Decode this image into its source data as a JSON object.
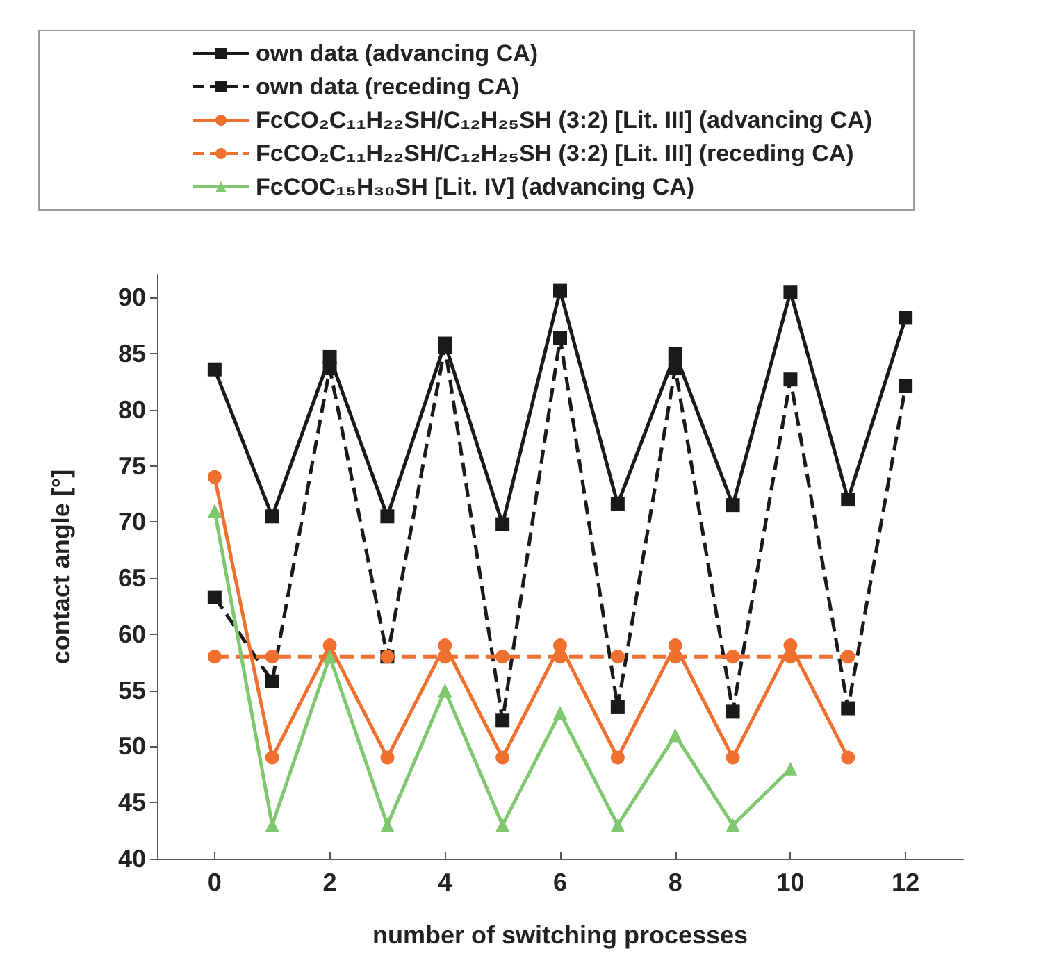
{
  "chart_data": {
    "type": "line",
    "xlabel": "number of switching processes",
    "ylabel": "contact angle [°]",
    "xlim": [
      -1,
      13
    ],
    "xticks": [
      0,
      2,
      4,
      6,
      8,
      10,
      12
    ],
    "ylim": [
      40,
      92
    ],
    "yticks": [
      40,
      45,
      50,
      55,
      60,
      65,
      70,
      75,
      80,
      85,
      90
    ],
    "grid": false,
    "legend": "top",
    "series": [
      {
        "name": "own data (advancing CA)",
        "color": "#1a1a1a",
        "marker": "square",
        "line_style": "solid",
        "x": [
          0,
          1,
          2,
          3,
          4,
          5,
          6,
          7,
          8,
          9,
          10,
          11,
          12
        ],
        "values": [
          83.6,
          70.5,
          84.7,
          70.5,
          85.9,
          69.8,
          90.6,
          71.6,
          85,
          71.5,
          90.5,
          72,
          88.2
        ]
      },
      {
        "name": "own data (receding CA)",
        "color": "#1a1a1a",
        "marker": "square",
        "line_style": "dashed",
        "x": [
          0,
          1,
          2,
          3,
          4,
          5,
          6,
          7,
          8,
          9,
          10,
          11,
          12
        ],
        "values": [
          63.3,
          55.8,
          83.7,
          58,
          85.6,
          52.3,
          86.4,
          53.5,
          83.7,
          53.1,
          82.7,
          53.4,
          82.1
        ]
      },
      {
        "name": "FcCO₂C₁₁H₂₂SH/C₁₂H₂₅SH (3:2) [Lit. III] (advancing CA)",
        "color": "#f07030",
        "marker": "circle",
        "line_style": "solid",
        "x": [
          0,
          1,
          2,
          3,
          4,
          5,
          6,
          7,
          8,
          9,
          10,
          11
        ],
        "values": [
          74,
          49,
          59,
          49,
          59,
          49,
          59,
          49,
          59,
          49,
          59,
          49
        ]
      },
      {
        "name": "FcCO₂C₁₁H₂₂SH/C₁₂H₂₅SH (3:2) [Lit. III] (receding CA)",
        "color": "#f07030",
        "marker": "circle",
        "line_style": "dashed",
        "x": [
          0,
          1,
          2,
          3,
          4,
          5,
          6,
          7,
          8,
          9,
          10,
          11
        ],
        "values": [
          58,
          58,
          58,
          58,
          58,
          58,
          58,
          58,
          58,
          58,
          58,
          58
        ]
      },
      {
        "name": "FcCOC₁₅H₃₀SH [Lit. IV] (advancing CA)",
        "color": "#80c870",
        "marker": "triangle",
        "line_style": "solid",
        "x": [
          0,
          1,
          2,
          3,
          4,
          5,
          6,
          7,
          8,
          9,
          10
        ],
        "values": [
          71,
          43,
          58,
          43,
          55,
          43,
          53,
          43,
          51,
          43,
          48
        ]
      }
    ]
  }
}
